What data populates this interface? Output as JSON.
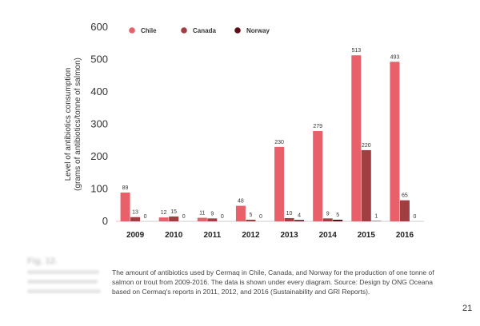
{
  "chart_data": {
    "type": "bar",
    "title": "",
    "xlabel": "",
    "ylabel": [
      "Level of antibiotics consumption",
      "(grams of antibiotics/tonne of salmon)"
    ],
    "categories": [
      "2009",
      "2010",
      "2011",
      "2012",
      "2013",
      "2014",
      "2015",
      "2016"
    ],
    "ylim": [
      0,
      600
    ],
    "yticks": [
      0,
      100,
      200,
      300,
      400,
      500,
      600
    ],
    "legend_position": "top",
    "series": [
      {
        "name": "Chile",
        "color": "#e86069",
        "values": [
          89,
          12,
          11,
          48,
          230,
          279,
          513,
          493
        ]
      },
      {
        "name": "Canada",
        "color": "#9f3f42",
        "values": [
          13,
          15,
          9,
          5,
          10,
          9,
          220,
          65
        ]
      },
      {
        "name": "Norway",
        "color": "#5a1016",
        "values": [
          0,
          0,
          0,
          0,
          4,
          5,
          1,
          0
        ]
      }
    ]
  },
  "caption": "The amount of antibiotics used by Cermaq in Chile, Canada, and Norway for the production of one tonne of salmon or trout from 2009-2016. The data is shown under every diagram. Source: Design by ONG Oceana based on Cermaq's reports in 2011, 2012, and 2016 (Sustainability and GRI Reports).",
  "figure_heading": "Fig. 12.",
  "page_number": "21"
}
